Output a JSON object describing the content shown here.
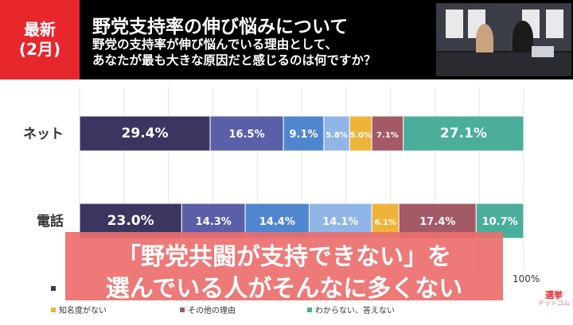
{
  "header": {
    "badge_line1": "最新",
    "badge_line2": "(2月)",
    "title": "野党支持率の伸び悩みについて",
    "subtitle_line1": "野党の支持率が伸び悩んでいる理由として、",
    "subtitle_line2": "あなたが最も大きな原因だと感じるのは何ですか？"
  },
  "caption": {
    "line1": "「野党共闘が支持できない」を",
    "line2": "選んでいる人がそんなに多くない"
  },
  "axis_end_label": "100%",
  "logo": {
    "main": "選挙",
    "sub": "ドットコム"
  },
  "colors": {
    "header_bg": "#000000",
    "badge": "#e8272d",
    "caption_bg": "#ec6e6e"
  },
  "chart_data": {
    "type": "bar",
    "orientation": "horizontal",
    "stacked": true,
    "percent": true,
    "categories": [
      "ネット",
      "電話"
    ],
    "xlim": [
      0,
      100
    ],
    "grid": true,
    "series": [
      {
        "name": "",
        "color": "#3b3660",
        "values": [
          29.4,
          23.0
        ]
      },
      {
        "name": "",
        "color": "#5a5fa8",
        "values": [
          16.5,
          14.3
        ]
      },
      {
        "name": "",
        "color": "#4f86cf",
        "values": [
          9.1,
          14.4
        ]
      },
      {
        "name": "",
        "color": "#8fb6e6",
        "values": [
          5.8,
          14.1
        ]
      },
      {
        "name": "知名度がない",
        "color": "#f0b33a",
        "values": [
          5.0,
          6.1
        ]
      },
      {
        "name": "その他の理由",
        "color": "#a45a66",
        "values": [
          7.1,
          17.4
        ]
      },
      {
        "name": "わからない、答えない",
        "color": "#4aae9a",
        "values": [
          27.1,
          10.7
        ]
      }
    ]
  }
}
